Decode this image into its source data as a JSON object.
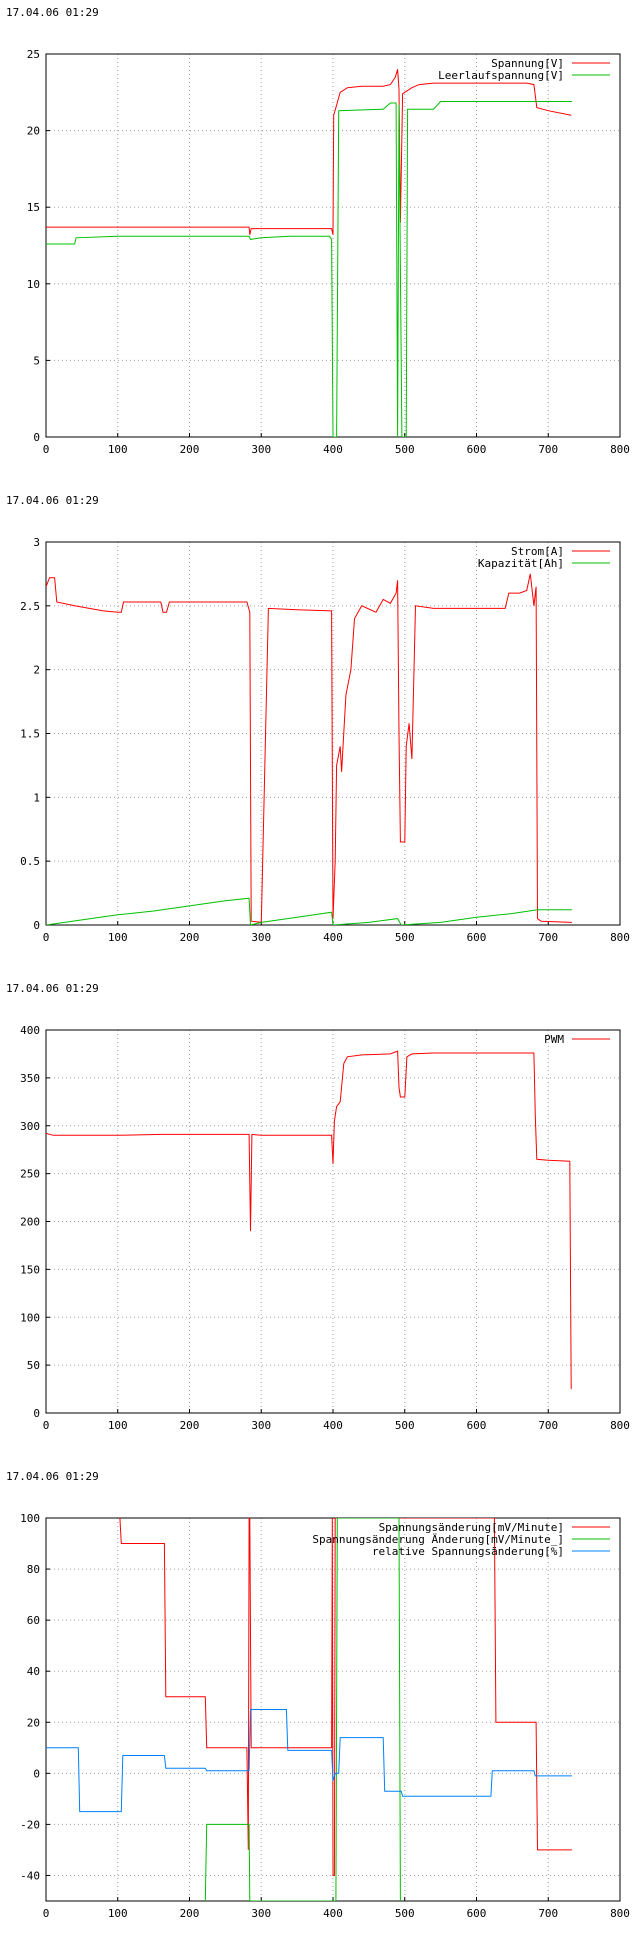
{
  "timestamp": "17.04.06 01:29",
  "colors": {
    "red": "#ff0000",
    "green": "#00c000",
    "blue": "#0080ff",
    "grid": "#a0a0a0",
    "axis": "#000000"
  },
  "chart_data": [
    {
      "type": "line",
      "timestamp": "17.04.06 01:29",
      "xlim": [
        0,
        800
      ],
      "ylim": [
        0,
        25
      ],
      "xticks": [
        "0",
        "100",
        "200",
        "300",
        "400",
        "500",
        "600",
        "700",
        "800"
      ],
      "yticks": [
        "0",
        "5",
        "10",
        "15",
        "20",
        "25"
      ],
      "grid": true,
      "legend_position": "top-right",
      "series": [
        {
          "name": "Spannung[V]",
          "color": "#ff0000",
          "points": [
            [
              0,
              13.7
            ],
            [
              100,
              13.7
            ],
            [
              200,
              13.7
            ],
            [
              283,
              13.7
            ],
            [
              284,
              13.2
            ],
            [
              286,
              13.6
            ],
            [
              300,
              13.6
            ],
            [
              398,
              13.6
            ],
            [
              400,
              13.2
            ],
            [
              401,
              21.0
            ],
            [
              404,
              21.5
            ],
            [
              410,
              22.5
            ],
            [
              420,
              22.8
            ],
            [
              440,
              22.9
            ],
            [
              470,
              22.9
            ],
            [
              480,
              23.0
            ],
            [
              487,
              23.5
            ],
            [
              490,
              24.0
            ],
            [
              492,
              22.7
            ],
            [
              494,
              14.0
            ],
            [
              497,
              22.4
            ],
            [
              500,
              22.5
            ],
            [
              510,
              22.8
            ],
            [
              520,
              23.0
            ],
            [
              540,
              23.1
            ],
            [
              560,
              23.1
            ],
            [
              600,
              23.1
            ],
            [
              650,
              23.1
            ],
            [
              670,
              23.1
            ],
            [
              680,
              23.0
            ],
            [
              684,
              21.5
            ],
            [
              700,
              21.3
            ],
            [
              732,
              21.0
            ]
          ]
        },
        {
          "name": "Leerlaufspannung[V]",
          "color": "#00c000",
          "points": [
            [
              0,
              12.6
            ],
            [
              40,
              12.6
            ],
            [
              42,
              13.0
            ],
            [
              100,
              13.1
            ],
            [
              200,
              13.1
            ],
            [
              283,
              13.1
            ],
            [
              285,
              12.9
            ],
            [
              300,
              13.0
            ],
            [
              340,
              13.1
            ],
            [
              395,
              13.1
            ],
            [
              398,
              12.9
            ],
            [
              400,
              0.0
            ],
            [
              405,
              0.0
            ],
            [
              408,
              21.3
            ],
            [
              470,
              21.4
            ],
            [
              480,
              21.8
            ],
            [
              488,
              21.8
            ],
            [
              490,
              0.0
            ],
            [
              492,
              21.7
            ],
            [
              494,
              11.0
            ],
            [
              496,
              0.0
            ],
            [
              502,
              0.0
            ],
            [
              504,
              21.4
            ],
            [
              540,
              21.4
            ],
            [
              550,
              21.9
            ],
            [
              620,
              21.9
            ],
            [
              733,
              21.9
            ]
          ]
        }
      ]
    },
    {
      "type": "line",
      "timestamp": "17.04.06 01:29",
      "xlim": [
        0,
        800
      ],
      "ylim": [
        0,
        3
      ],
      "xticks": [
        "0",
        "100",
        "200",
        "300",
        "400",
        "500",
        "600",
        "700",
        "800"
      ],
      "yticks": [
        "0",
        "0.5",
        "1",
        "1.5",
        "2",
        "2.5",
        "3"
      ],
      "grid": true,
      "legend_position": "top-right",
      "series": [
        {
          "name": "Strom[A]",
          "color": "#ff0000",
          "points": [
            [
              0,
              2.65
            ],
            [
              5,
              2.72
            ],
            [
              12,
              2.72
            ],
            [
              15,
              2.53
            ],
            [
              40,
              2.5
            ],
            [
              80,
              2.46
            ],
            [
              100,
              2.45
            ],
            [
              105,
              2.45
            ],
            [
              108,
              2.53
            ],
            [
              160,
              2.53
            ],
            [
              163,
              2.45
            ],
            [
              168,
              2.45
            ],
            [
              172,
              2.53
            ],
            [
              280,
              2.53
            ],
            [
              284,
              2.45
            ],
            [
              285,
              1.25
            ],
            [
              286,
              0.03
            ],
            [
              300,
              0.02
            ],
            [
              310,
              2.48
            ],
            [
              350,
              2.47
            ],
            [
              398,
              2.46
            ],
            [
              400,
              0.05
            ],
            [
              403,
              0.5
            ],
            [
              405,
              1.25
            ],
            [
              410,
              1.4
            ],
            [
              412,
              1.2
            ],
            [
              418,
              1.8
            ],
            [
              425,
              2.0
            ],
            [
              430,
              2.4
            ],
            [
              440,
              2.5
            ],
            [
              460,
              2.45
            ],
            [
              470,
              2.55
            ],
            [
              480,
              2.52
            ],
            [
              488,
              2.6
            ],
            [
              490,
              2.7
            ],
            [
              492,
              1.5
            ],
            [
              494,
              0.65
            ],
            [
              500,
              0.65
            ],
            [
              502,
              1.4
            ],
            [
              506,
              1.58
            ],
            [
              510,
              1.3
            ],
            [
              515,
              2.5
            ],
            [
              540,
              2.48
            ],
            [
              580,
              2.48
            ],
            [
              640,
              2.48
            ],
            [
              645,
              2.6
            ],
            [
              660,
              2.6
            ],
            [
              670,
              2.62
            ],
            [
              675,
              2.75
            ],
            [
              680,
              2.5
            ],
            [
              683,
              2.65
            ],
            [
              685,
              0.05
            ],
            [
              690,
              0.03
            ],
            [
              733,
              0.02
            ]
          ]
        },
        {
          "name": "Kapazität[Ah]",
          "color": "#00c000",
          "points": [
            [
              0,
              0.0
            ],
            [
              50,
              0.04
            ],
            [
              100,
              0.08
            ],
            [
              150,
              0.11
            ],
            [
              200,
              0.15
            ],
            [
              250,
              0.19
            ],
            [
              283,
              0.21
            ],
            [
              285,
              0.0
            ],
            [
              300,
              0.02
            ],
            [
              350,
              0.06
            ],
            [
              398,
              0.1
            ],
            [
              400,
              0.0
            ],
            [
              450,
              0.02
            ],
            [
              490,
              0.05
            ],
            [
              495,
              0.0
            ],
            [
              550,
              0.02
            ],
            [
              600,
              0.06
            ],
            [
              650,
              0.09
            ],
            [
              685,
              0.12
            ],
            [
              733,
              0.12
            ]
          ]
        }
      ]
    },
    {
      "type": "line",
      "timestamp": "17.04.06 01:29",
      "xlim": [
        0,
        800
      ],
      "ylim": [
        0,
        400
      ],
      "xticks": [
        "0",
        "100",
        "200",
        "300",
        "400",
        "500",
        "600",
        "700",
        "800"
      ],
      "yticks": [
        "0",
        "50",
        "100",
        "150",
        "200",
        "250",
        "300",
        "350",
        "400"
      ],
      "grid": true,
      "legend_position": "top-right",
      "series": [
        {
          "name": "PWM",
          "color": "#ff0000",
          "points": [
            [
              0,
              292
            ],
            [
              10,
              290
            ],
            [
              100,
              290
            ],
            [
              160,
              291
            ],
            [
              200,
              291
            ],
            [
              280,
              291
            ],
            [
              283,
              291
            ],
            [
              284,
              240
            ],
            [
              285,
              190
            ],
            [
              287,
              291
            ],
            [
              300,
              290
            ],
            [
              398,
              290
            ],
            [
              400,
              260
            ],
            [
              402,
              305
            ],
            [
              405,
              320
            ],
            [
              410,
              325
            ],
            [
              415,
              365
            ],
            [
              420,
              372
            ],
            [
              440,
              374
            ],
            [
              480,
              375
            ],
            [
              490,
              378
            ],
            [
              492,
              340
            ],
            [
              494,
              330
            ],
            [
              500,
              330
            ],
            [
              503,
              372
            ],
            [
              510,
              375
            ],
            [
              540,
              376
            ],
            [
              600,
              376
            ],
            [
              680,
              376
            ],
            [
              682,
              310
            ],
            [
              684,
              265
            ],
            [
              700,
              264
            ],
            [
              730,
              263
            ],
            [
              732,
              25
            ]
          ]
        }
      ]
    },
    {
      "type": "line",
      "timestamp": "17.04.06 01:29",
      "xlim": [
        0,
        800
      ],
      "ylim": [
        -50,
        100
      ],
      "xticks": [
        "0",
        "100",
        "200",
        "300",
        "400",
        "500",
        "600",
        "700",
        "800"
      ],
      "yticks": [
        "-40",
        "-20",
        "0",
        "20",
        "40",
        "60",
        "80",
        "100"
      ],
      "grid": true,
      "legend_position": "top-right",
      "series": [
        {
          "name": "Spannungsänderung[mV/Minute]",
          "color": "#ff0000",
          "points": [
            [
              103,
              100
            ],
            [
              105,
              90
            ],
            [
              165,
              90
            ],
            [
              167,
              30
            ],
            [
              222,
              30
            ],
            [
              224,
              10
            ],
            [
              280,
              10
            ],
            [
              282,
              -30
            ],
            [
              283,
              100
            ],
            [
              284,
              100
            ],
            [
              286,
              10
            ],
            [
              290,
              10
            ],
            [
              398,
              10
            ],
            [
              399,
              100
            ],
            [
              400,
              -40
            ],
            [
              402,
              -40
            ],
            [
              403,
              100
            ],
            [
              625,
              100
            ],
            [
              627,
              20
            ],
            [
              683,
              20
            ],
            [
              685,
              -30
            ],
            [
              733,
              -30
            ]
          ]
        },
        {
          "name": "Spannungsänderung Änderung[mV/Minute_]",
          "color": "#00c000",
          "points": [
            [
              222,
              -50
            ],
            [
              224,
              -20
            ],
            [
              283,
              -20
            ],
            [
              284,
              -50
            ],
            [
              404,
              -50
            ],
            [
              406,
              100
            ],
            [
              492,
              100
            ],
            [
              494,
              -50
            ]
          ]
        },
        {
          "name": "relative Spannungsänderung[%]",
          "color": "#0080ff",
          "points": [
            [
              0,
              10
            ],
            [
              45,
              10
            ],
            [
              47,
              -15
            ],
            [
              105,
              -15
            ],
            [
              107,
              7
            ],
            [
              165,
              7
            ],
            [
              167,
              2
            ],
            [
              222,
              2
            ],
            [
              224,
              1
            ],
            [
              283,
              1
            ],
            [
              285,
              25
            ],
            [
              335,
              25
            ],
            [
              337,
              9
            ],
            [
              398,
              9
            ],
            [
              400,
              -3
            ],
            [
              403,
              0
            ],
            [
              408,
              0
            ],
            [
              410,
              14
            ],
            [
              470,
              14
            ],
            [
              472,
              -7
            ],
            [
              495,
              -7
            ],
            [
              497,
              -9
            ],
            [
              620,
              -9
            ],
            [
              622,
              1
            ],
            [
              680,
              1
            ],
            [
              682,
              -1
            ],
            [
              733,
              -1
            ]
          ]
        }
      ]
    }
  ]
}
